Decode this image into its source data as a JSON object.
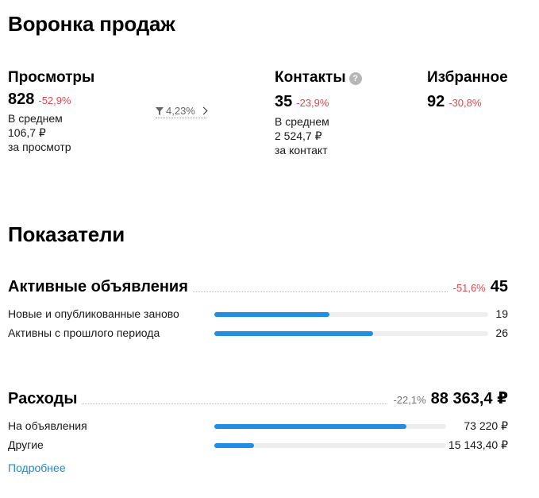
{
  "funnel": {
    "title": "Воронка продаж",
    "views": {
      "label": "Просмотры",
      "value": "828",
      "change": "-52,9%",
      "avg_line1": "В среднем",
      "avg_line2": "106,7 ₽",
      "avg_line3": "за просмотр"
    },
    "conversion": {
      "icon": "filter-icon",
      "value": "4,23%"
    },
    "contacts": {
      "label": "Контакты",
      "help": "?",
      "value": "35",
      "change": "-23,9%",
      "avg_line1": "В среднем",
      "avg_line2": "2 524,7 ₽",
      "avg_line3": "за контакт"
    },
    "favorites": {
      "label": "Избранное",
      "value": "92",
      "change": "-30,8%"
    }
  },
  "indicators": {
    "title": "Показатели",
    "active_ads": {
      "title": "Активные объявления",
      "change": "-51,6%",
      "value": "45",
      "rows": [
        {
          "label": "Новые и опубликованные заново",
          "value": "19",
          "fraction": 0.42
        },
        {
          "label": "Активны с прошлого периода",
          "value": "26",
          "fraction": 0.58
        }
      ]
    },
    "expenses": {
      "title": "Расходы",
      "change": "-22,1%",
      "value": "88 363,4 ₽",
      "rows": [
        {
          "label": "На объявления",
          "value": "73 220 ₽",
          "fraction": 0.83
        },
        {
          "label": "Другие",
          "value": "15 143,40 ₽",
          "fraction": 0.17
        }
      ]
    },
    "more_link": "Подробнее"
  },
  "colors": {
    "accent": "#1f8ee6",
    "negative": "#e8464f",
    "link": "#1a8bdc",
    "track": "#eeeeee"
  }
}
